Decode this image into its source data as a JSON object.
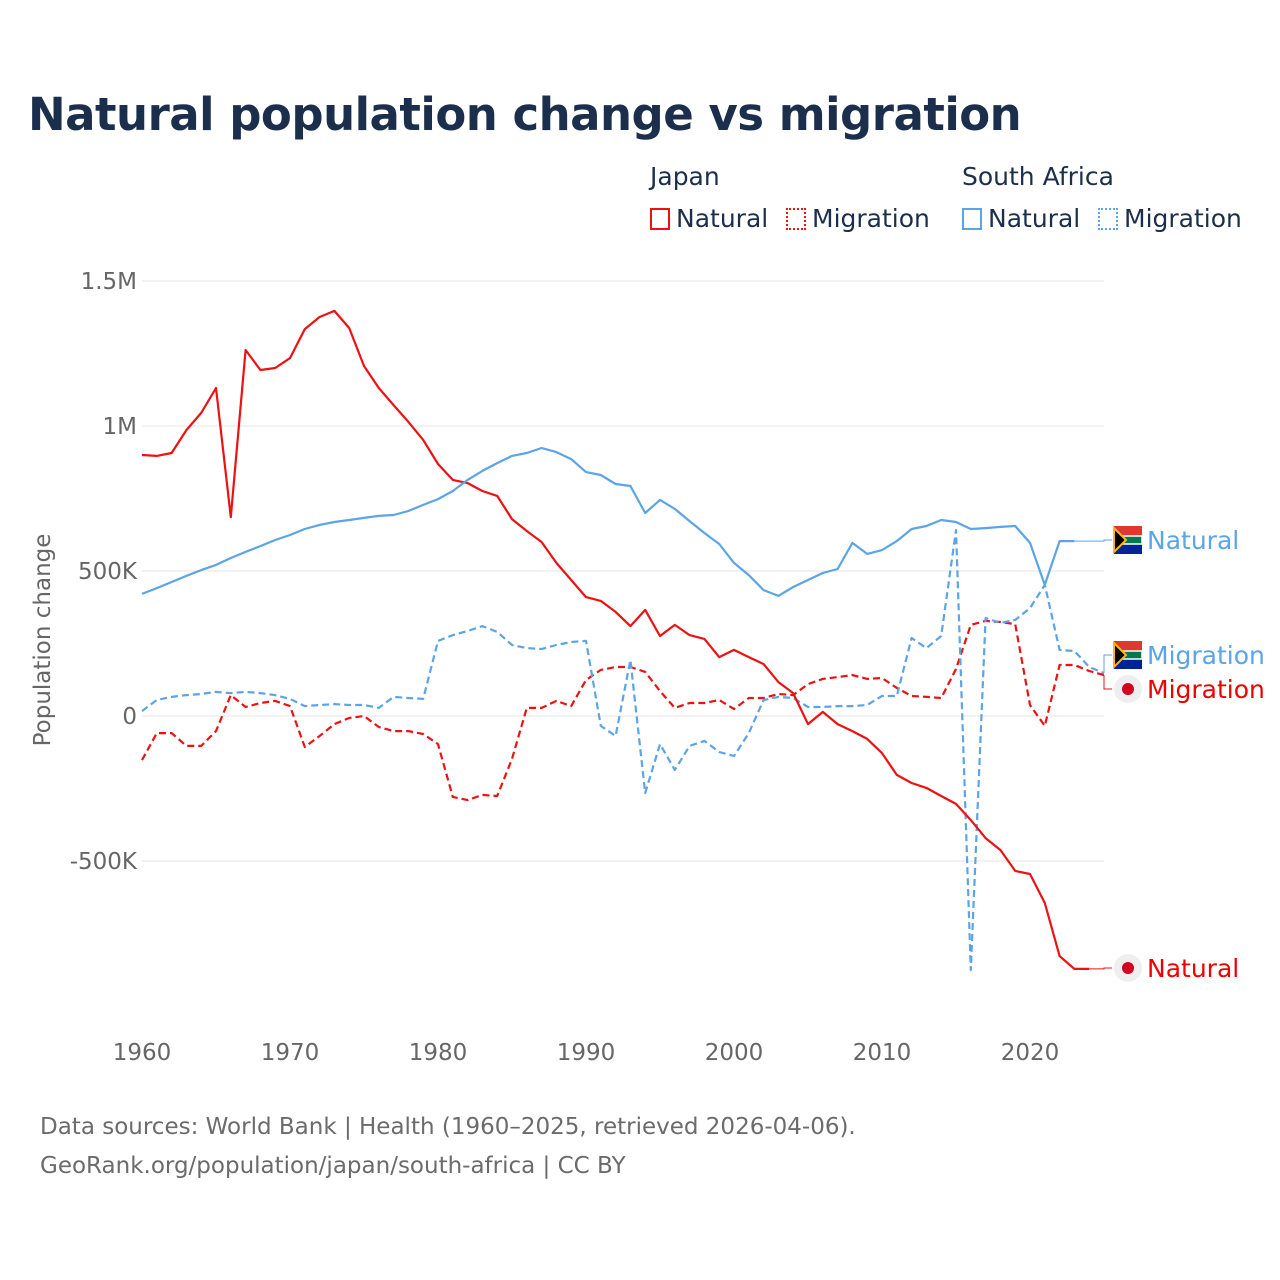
{
  "title": "Natural population change vs migration",
  "legend": {
    "groups": [
      {
        "name": "Japan",
        "items": [
          {
            "label": "Natural",
            "style": "solid"
          },
          {
            "label": "Migration",
            "style": "dotted"
          }
        ],
        "color": "#ee1111"
      },
      {
        "name": "South Africa",
        "items": [
          {
            "label": "Natural",
            "style": "solid"
          },
          {
            "label": "Migration",
            "style": "dotted"
          }
        ],
        "color": "#5ba4e8"
      }
    ]
  },
  "source": {
    "line1": "Data sources: World Bank | Health (1960–2025, retrieved 2026-04-06).",
    "line2": "GeoRank.org/population/japan/south-africa | CC BY"
  },
  "chart_data": {
    "type": "line",
    "title": "Natural population change vs migration",
    "ylabel": "Population change",
    "xlabel": "",
    "xlim": [
      1960,
      2025
    ],
    "ylim": [
      -1000000,
      1500000
    ],
    "x_ticks": [
      1960,
      1970,
      1980,
      1990,
      2000,
      2010,
      2020
    ],
    "x_tick_labels": [
      "1960",
      "1970",
      "1980",
      "1990",
      "2000",
      "2010",
      "2020"
    ],
    "y_ticks": [
      -500000,
      0,
      500000,
      1000000,
      1500000
    ],
    "y_tick_labels": [
      "-500K",
      "0",
      "500K",
      "1M",
      "1.5M"
    ],
    "grid": true,
    "legend_position": "top-right",
    "series": [
      {
        "name": "Japan Natural",
        "end_label": "Natural",
        "color": "#ee1111",
        "dash": "solid",
        "start": 1960,
        "values_k": [
          900,
          897,
          907,
          986,
          1045,
          1131,
          686,
          1262,
          1193,
          1200,
          1234,
          1334,
          1376,
          1397,
          1338,
          1207,
          1131,
          1072,
          1014,
          952,
          869,
          814,
          803,
          776,
          759,
          679,
          638,
          600,
          528,
          469,
          410,
          397,
          359,
          310,
          366,
          276,
          314,
          279,
          266,
          203,
          228,
          203,
          179,
          117,
          79,
          -28,
          14,
          -28,
          -52,
          -79,
          -128,
          -203,
          -231,
          -248,
          -276,
          -303,
          -359,
          -421,
          -462,
          -534,
          -545,
          -645,
          -828,
          -872,
          -872
        ]
      },
      {
        "name": "Japan Migration",
        "end_label": "Migration",
        "color": "#ee1111",
        "dash": "dashed",
        "start": 1960,
        "values_k": [
          -152,
          -59,
          -59,
          -103,
          -103,
          -52,
          72,
          31,
          45,
          52,
          34,
          -107,
          -69,
          -28,
          -7,
          0,
          -38,
          -52,
          -52,
          -62,
          -97,
          -279,
          -290,
          -272,
          -276,
          -148,
          28,
          28,
          52,
          34,
          124,
          159,
          169,
          169,
          152,
          86,
          28,
          45,
          45,
          55,
          24,
          62,
          62,
          76,
          72,
          110,
          128,
          134,
          141,
          128,
          131,
          97,
          69,
          66,
          62,
          162,
          314,
          328,
          324,
          317,
          38,
          -34,
          176,
          176,
          155,
          141
        ]
      },
      {
        "name": "South Africa Natural",
        "end_label": "Natural",
        "color": "#5ba4e8",
        "dash": "solid",
        "start": 1960,
        "values_k": [
          421,
          441,
          462,
          483,
          503,
          521,
          545,
          566,
          586,
          607,
          624,
          645,
          659,
          669,
          676,
          683,
          690,
          693,
          707,
          728,
          748,
          776,
          814,
          845,
          872,
          897,
          907,
          924,
          910,
          886,
          841,
          831,
          800,
          793,
          700,
          745,
          714,
          672,
          631,
          593,
          528,
          486,
          434,
          414,
          445,
          469,
          493,
          507,
          597,
          559,
          572,
          603,
          645,
          655,
          676,
          669,
          645,
          648,
          652,
          655,
          597,
          452,
          603,
          603
        ]
      },
      {
        "name": "South Africa Migration",
        "end_label": "Migration",
        "color": "#5ba4e8",
        "dash": "dashed",
        "start": 1960,
        "values_k": [
          17,
          55,
          66,
          72,
          76,
          83,
          79,
          83,
          79,
          72,
          59,
          34,
          38,
          41,
          38,
          38,
          28,
          66,
          62,
          59,
          259,
          279,
          293,
          310,
          290,
          245,
          234,
          231,
          245,
          255,
          259,
          -34,
          -69,
          193,
          -266,
          -97,
          -186,
          -103,
          -86,
          -124,
          -138,
          -59,
          55,
          66,
          62,
          31,
          31,
          34,
          34,
          38,
          69,
          69,
          269,
          234,
          276,
          641,
          -876,
          338,
          321,
          331,
          372,
          452,
          228,
          224,
          169,
          148
        ]
      }
    ]
  }
}
